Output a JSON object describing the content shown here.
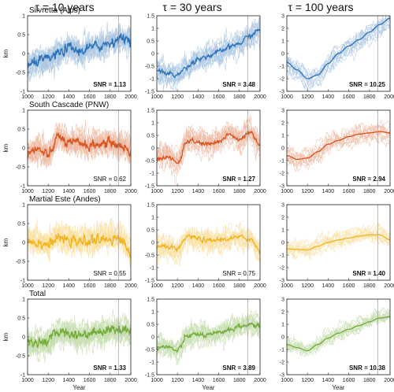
{
  "column_titles": [
    "τ = 10 years",
    "τ = 30 years",
    "τ = 100 years"
  ],
  "row_titles": [
    "Silvretta (Alps)",
    "South Cascade (PNW)",
    "Martial Este (Andes)",
    "Total"
  ],
  "ylabel": "km",
  "xlabel": "Year",
  "colors": {
    "Silvretta (Alps)": "#2a72b8",
    "South Cascade (PNW)": "#d9541e",
    "Martial Este (Andes)": "#f2b41e",
    "Total": "#74ac3a"
  },
  "vline_year": 1880,
  "chart_data": [
    {
      "type": "line",
      "row": "Silvretta (Alps)",
      "tau": "τ = 10 years",
      "xlim": [
        1000,
        2000
      ],
      "ylim": [
        -1,
        1
      ],
      "xticks": [
        1000,
        1200,
        1400,
        1600,
        1800,
        2000
      ],
      "yticks": [
        -1,
        -0.5,
        0,
        0.5,
        1
      ],
      "yticklabels": [
        "-1",
        "-0.5",
        "0",
        "0.5",
        "1"
      ],
      "snr_label": "SNR = 1.13",
      "snr_bold": true,
      "vline": 1880,
      "mean": {
        "x": [
          1000,
          1100,
          1200,
          1300,
          1400,
          1500,
          1600,
          1700,
          1800,
          1900,
          2000
        ],
        "y": [
          -0.35,
          -0.2,
          -0.15,
          0.0,
          0.15,
          0.05,
          0.15,
          0.2,
          0.3,
          0.4,
          0.4
        ]
      }
    },
    {
      "type": "line",
      "row": "Silvretta (Alps)",
      "tau": "τ = 30 years",
      "xlim": [
        1000,
        2000
      ],
      "ylim": [
        -1.5,
        1.5
      ],
      "xticks": [
        1000,
        1200,
        1400,
        1600,
        1800,
        2000
      ],
      "yticks": [
        -1.5,
        -1,
        -0.5,
        0,
        0.5,
        1,
        1.5
      ],
      "yticklabels": [
        "-1.5",
        "-1",
        "-0.5",
        "0",
        "0.5",
        "1",
        "1.5"
      ],
      "snr_label": "SNR = 3.48",
      "snr_bold": true,
      "vline": 1880,
      "mean": {
        "x": [
          1000,
          1100,
          1200,
          1300,
          1400,
          1500,
          1600,
          1700,
          1800,
          1900,
          2000
        ],
        "y": [
          -0.65,
          -0.8,
          -0.85,
          -0.5,
          -0.2,
          -0.1,
          0.05,
          0.25,
          0.4,
          0.7,
          0.95
        ]
      }
    },
    {
      "type": "line",
      "row": "Silvretta (Alps)",
      "tau": "τ = 100 years",
      "xlim": [
        1000,
        2000
      ],
      "ylim": [
        -3,
        3
      ],
      "xticks": [
        1000,
        1200,
        1400,
        1600,
        1800,
        2000
      ],
      "yticks": [
        -3,
        -2,
        -1,
        0,
        1,
        2,
        3
      ],
      "yticklabels": [
        "-3",
        "-2",
        "-1",
        "0",
        "1",
        "2",
        "3"
      ],
      "snr_label": "SNR = 10.25",
      "snr_bold": true,
      "vline": 1880,
      "mean": {
        "x": [
          1000,
          1100,
          1200,
          1300,
          1400,
          1500,
          1600,
          1700,
          1800,
          1900,
          2000
        ],
        "y": [
          -0.7,
          -1.3,
          -2.0,
          -1.7,
          -0.8,
          0.0,
          0.6,
          1.1,
          1.7,
          2.3,
          2.8
        ]
      }
    },
    {
      "type": "line",
      "row": "South Cascade (PNW)",
      "tau": "τ = 10 years",
      "xlim": [
        1000,
        2000
      ],
      "ylim": [
        -1,
        1
      ],
      "xticks": [
        1000,
        1200,
        1400,
        1600,
        1800,
        2000
      ],
      "yticks": [
        -1,
        -0.5,
        0,
        0.5,
        1
      ],
      "yticklabels": [
        "-1",
        "-0.5",
        "0",
        "0.5",
        "1"
      ],
      "snr_label": "SNR = 0.62",
      "snr_bold": false,
      "vline": 1880,
      "mean": {
        "x": [
          1000,
          1100,
          1200,
          1300,
          1400,
          1500,
          1600,
          1700,
          1800,
          1900,
          2000
        ],
        "y": [
          -0.1,
          -0.05,
          -0.2,
          0.3,
          0.1,
          0.15,
          0.05,
          0.1,
          0.15,
          0.05,
          -0.1
        ]
      }
    },
    {
      "type": "line",
      "row": "South Cascade (PNW)",
      "tau": "τ = 30 years",
      "xlim": [
        1000,
        2000
      ],
      "ylim": [
        -1.5,
        1.5
      ],
      "xticks": [
        1000,
        1200,
        1400,
        1600,
        1800,
        2000
      ],
      "yticks": [
        -1.5,
        -1,
        -0.5,
        0,
        0.5,
        1,
        1.5
      ],
      "yticklabels": [
        "-1.5",
        "-1",
        "-0.5",
        "0",
        "0.5",
        "1",
        "1.5"
      ],
      "snr_label": "SNR = 1.27",
      "snr_bold": true,
      "vline": 1880,
      "mean": {
        "x": [
          1000,
          1100,
          1200,
          1300,
          1400,
          1500,
          1600,
          1700,
          1800,
          1900,
          2000
        ],
        "y": [
          -0.4,
          -0.35,
          -0.6,
          0.3,
          0.2,
          0.15,
          0.25,
          0.55,
          0.3,
          0.6,
          0.1
        ]
      }
    },
    {
      "type": "line",
      "row": "South Cascade (PNW)",
      "tau": "τ = 100 years",
      "xlim": [
        1000,
        2000
      ],
      "ylim": [
        -3,
        3
      ],
      "xticks": [
        1000,
        1200,
        1400,
        1600,
        1800,
        2000
      ],
      "yticks": [
        -3,
        -2,
        -1,
        0,
        1,
        2,
        3
      ],
      "yticklabels": [
        "-3",
        "-2",
        "-1",
        "0",
        "1",
        "2",
        "3"
      ],
      "snr_label": "SNR = 2.94",
      "snr_bold": true,
      "vline": 1880,
      "mean": {
        "x": [
          1000,
          1100,
          1200,
          1300,
          1400,
          1500,
          1600,
          1700,
          1800,
          1900,
          2000
        ],
        "y": [
          -0.6,
          -0.9,
          -0.8,
          -0.3,
          0.3,
          0.6,
          0.9,
          1.1,
          1.2,
          1.3,
          1.2
        ]
      }
    },
    {
      "type": "line",
      "row": "Martial Este (Andes)",
      "tau": "τ = 10 years",
      "xlim": [
        1000,
        2000
      ],
      "ylim": [
        -1,
        1
      ],
      "xticks": [
        1000,
        1200,
        1400,
        1600,
        1800,
        2000
      ],
      "yticks": [
        -1,
        -0.5,
        0,
        0.5,
        1
      ],
      "yticklabels": [
        "-1",
        "-0.5",
        "0",
        "0.5",
        "1"
      ],
      "snr_label": "SNR = 0.55",
      "snr_bold": false,
      "vline": 1880,
      "mean": {
        "x": [
          1000,
          1100,
          1200,
          1300,
          1400,
          1500,
          1600,
          1700,
          1800,
          1900,
          2000
        ],
        "y": [
          0.05,
          0.0,
          -0.05,
          0.1,
          0.05,
          0.0,
          0.05,
          0.05,
          0.1,
          0.1,
          -0.3
        ]
      }
    },
    {
      "type": "line",
      "row": "Martial Este (Andes)",
      "tau": "τ = 30 years",
      "xlim": [
        1000,
        2000
      ],
      "ylim": [
        -1.5,
        1.5
      ],
      "xticks": [
        1000,
        1200,
        1400,
        1600,
        1800,
        2000
      ],
      "yticks": [
        -1.5,
        -1,
        -0.5,
        0,
        0.5,
        1,
        1.5
      ],
      "yticklabels": [
        "-1.5",
        "-1",
        "-0.5",
        "0",
        "0.5",
        "1",
        "1.5"
      ],
      "snr_label": "SNR = 0.75",
      "snr_bold": false,
      "vline": 1880,
      "mean": {
        "x": [
          1000,
          1100,
          1200,
          1300,
          1400,
          1500,
          1600,
          1700,
          1800,
          1900,
          2000
        ],
        "y": [
          -0.2,
          -0.15,
          -0.3,
          0.25,
          0.15,
          0.05,
          0.1,
          0.15,
          0.2,
          0.15,
          -0.3
        ]
      }
    },
    {
      "type": "line",
      "row": "Martial Este (Andes)",
      "tau": "τ = 100 years",
      "xlim": [
        1000,
        2000
      ],
      "ylim": [
        -3,
        3
      ],
      "xticks": [
        1000,
        1200,
        1400,
        1600,
        1800,
        2000
      ],
      "yticks": [
        -3,
        -2,
        -1,
        0,
        1,
        2,
        3
      ],
      "yticklabels": [
        "-3",
        "-2",
        "-1",
        "0",
        "1",
        "2",
        "3"
      ],
      "snr_label": "SNR = 1.40",
      "snr_bold": true,
      "vline": 1880,
      "mean": {
        "x": [
          1000,
          1100,
          1200,
          1300,
          1400,
          1500,
          1600,
          1700,
          1800,
          1900,
          2000
        ],
        "y": [
          -0.5,
          -0.55,
          -0.6,
          -0.3,
          0.0,
          0.2,
          0.35,
          0.5,
          0.6,
          0.6,
          0.2
        ]
      }
    },
    {
      "type": "line",
      "row": "Total",
      "tau": "τ = 10 years",
      "xlim": [
        1000,
        2000
      ],
      "ylim": [
        -1,
        1
      ],
      "xticks": [
        1000,
        1200,
        1400,
        1600,
        1800,
        2000
      ],
      "yticks": [
        -1,
        -0.5,
        0,
        0.5,
        1
      ],
      "yticklabels": [
        "-1",
        "-0.5",
        "0",
        "0.5",
        "1"
      ],
      "snr_label": "SNR = 1.33",
      "snr_bold": true,
      "vline": 1880,
      "mean": {
        "x": [
          1000,
          1100,
          1200,
          1300,
          1400,
          1500,
          1600,
          1700,
          1800,
          1900,
          2000
        ],
        "y": [
          -0.15,
          -0.15,
          -0.1,
          0.15,
          0.1,
          0.05,
          0.1,
          0.15,
          0.2,
          0.2,
          0.15
        ]
      }
    },
    {
      "type": "line",
      "row": "Total",
      "tau": "τ = 30 years",
      "xlim": [
        1000,
        2000
      ],
      "ylim": [
        -1.5,
        1.5
      ],
      "xticks": [
        1000,
        1200,
        1400,
        1600,
        1800,
        2000
      ],
      "yticks": [
        -1.5,
        -1,
        -0.5,
        0,
        0.5,
        1,
        1.5
      ],
      "yticklabels": [
        "-1.5",
        "-1",
        "-0.5",
        "0",
        "0.5",
        "1",
        "1.5"
      ],
      "snr_label": "SNR = 3.89",
      "snr_bold": true,
      "vline": 1880,
      "mean": {
        "x": [
          1000,
          1100,
          1200,
          1300,
          1400,
          1500,
          1600,
          1700,
          1800,
          1900,
          2000
        ],
        "y": [
          -0.4,
          -0.4,
          -0.55,
          0.05,
          0.1,
          0.05,
          0.15,
          0.3,
          0.4,
          0.5,
          0.4
        ]
      }
    },
    {
      "type": "line",
      "row": "Total",
      "tau": "τ = 100 years",
      "xlim": [
        1000,
        2000
      ],
      "ylim": [
        -3,
        3
      ],
      "xticks": [
        1000,
        1200,
        1400,
        1600,
        1800,
        2000
      ],
      "yticks": [
        -3,
        -2,
        -1,
        0,
        1,
        2,
        3
      ],
      "yticklabels": [
        "-3",
        "-2",
        "-1",
        "0",
        "1",
        "2",
        "3"
      ],
      "snr_label": "SNR = 10.38",
      "snr_bold": true,
      "vline": 1880,
      "mean": {
        "x": [
          1000,
          1100,
          1200,
          1300,
          1400,
          1500,
          1600,
          1700,
          1800,
          1900,
          2000
        ],
        "y": [
          -0.6,
          -0.85,
          -1.1,
          -0.6,
          -0.1,
          0.3,
          0.6,
          0.9,
          1.2,
          1.5,
          1.6
        ]
      }
    }
  ]
}
